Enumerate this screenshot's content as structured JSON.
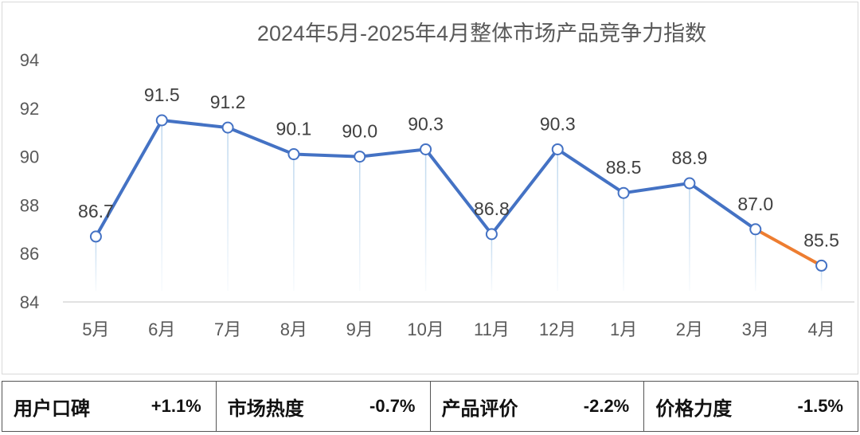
{
  "chart_data": {
    "type": "line",
    "title": "2024年5月-2025年4月整体市场产品竞争力指数",
    "categories": [
      "5月",
      "6月",
      "7月",
      "8月",
      "9月",
      "10月",
      "11月",
      "12月",
      "1月",
      "2月",
      "3月",
      "4月"
    ],
    "series": [
      {
        "name": "整体市场产品竞争力指数",
        "values": [
          86.7,
          91.5,
          91.2,
          90.1,
          90.0,
          90.3,
          86.8,
          90.3,
          88.5,
          88.9,
          87.0,
          85.5
        ]
      }
    ],
    "data_labels": [
      "86.7",
      "91.5",
      "91.2",
      "90.1",
      "90.0",
      "90.3",
      "86.8",
      "90.3",
      "88.5",
      "88.9",
      "87.0",
      "85.5"
    ],
    "ylim": [
      84,
      94
    ],
    "yticks": [
      84,
      86,
      88,
      90,
      92,
      94
    ],
    "xlabel": "",
    "ylabel": "",
    "line_color": "#4472C4",
    "last_segment_color": "#ED7D31",
    "drop_line_color": "#BDD7EE",
    "marker_fill": "#ffffff"
  },
  "metrics": [
    {
      "label": "用户口碑",
      "value": "+1.1%"
    },
    {
      "label": "市场热度",
      "value": "-0.7%"
    },
    {
      "label": "产品评价",
      "value": "-2.2%"
    },
    {
      "label": "价格力度",
      "value": "-1.5%"
    }
  ]
}
